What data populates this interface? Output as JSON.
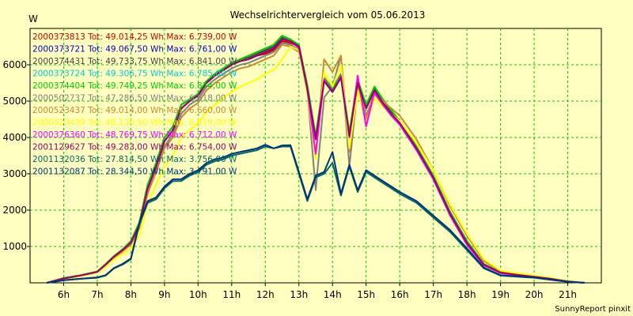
{
  "chart_data": {
    "type": "line",
    "title": "Wechselrichtervergleich vom 05.06.2013",
    "ylabel": "W",
    "xlabel": "",
    "footer": "SunnyReport pinxit",
    "grid": true,
    "ylim": [
      0,
      7000
    ],
    "xlim": [
      5,
      22
    ],
    "x_ticks": [
      6,
      7,
      8,
      9,
      10,
      11,
      12,
      13,
      14,
      15,
      16,
      17,
      18,
      19,
      20,
      21
    ],
    "x_tick_labels": [
      "6h",
      "7h",
      "8h",
      "9h",
      "10h",
      "11h",
      "12h",
      "13h",
      "14h",
      "15h",
      "16h",
      "17h",
      "18h",
      "19h",
      "20h",
      "21h"
    ],
    "y_ticks": [
      1000,
      2000,
      3000,
      4000,
      5000,
      6000
    ],
    "y_tick_labels": [
      "1000",
      "2000",
      "3000",
      "4000",
      "5000",
      "6000"
    ],
    "legend_position": "top-left",
    "x": [
      5.5,
      6.0,
      6.5,
      7.0,
      7.25,
      7.5,
      7.75,
      8.0,
      8.25,
      8.5,
      8.75,
      9.0,
      9.25,
      9.5,
      9.75,
      10.0,
      10.25,
      10.5,
      10.75,
      11.0,
      11.25,
      11.5,
      11.75,
      12.0,
      12.25,
      12.5,
      12.75,
      13.0,
      13.25,
      13.5,
      13.75,
      14.0,
      14.25,
      14.5,
      14.75,
      15.0,
      15.25,
      15.5,
      15.75,
      16.0,
      16.5,
      17.0,
      17.5,
      18.0,
      18.5,
      19.0,
      19.5,
      20.0,
      20.5,
      21.0,
      21.5
    ],
    "series": [
      {
        "name": "2000373813",
        "legend": "2000373813 Tot: 49.014,25 Wh Max: 6.739,00 W",
        "color": "#cc0000",
        "values": [
          0,
          120,
          200,
          300,
          500,
          720,
          900,
          1100,
          1600,
          2600,
          3200,
          3900,
          4200,
          4800,
          5000,
          5150,
          5500,
          5700,
          5850,
          6000,
          6100,
          6150,
          6250,
          6300,
          6400,
          6650,
          6600,
          6500,
          5400,
          4000,
          5600,
          5300,
          5700,
          4100,
          5500,
          4800,
          5300,
          4950,
          4650,
          4400,
          3700,
          2900,
          1900,
          1100,
          500,
          280,
          220,
          170,
          110,
          40,
          0
        ]
      },
      {
        "name": "2000373721",
        "legend": "2000373721 Tot: 49.067,50 Wh Max: 6.761,00 W",
        "color": "#0000cc",
        "values": [
          0,
          120,
          200,
          300,
          500,
          720,
          900,
          1100,
          1600,
          2600,
          3200,
          3900,
          4200,
          4800,
          5000,
          5150,
          5500,
          5700,
          5850,
          6000,
          6100,
          6150,
          6250,
          6350,
          6450,
          6700,
          6650,
          6500,
          5350,
          3950,
          5550,
          5250,
          5650,
          4050,
          5500,
          4800,
          5300,
          4950,
          4650,
          4400,
          3700,
          2900,
          1900,
          1100,
          500,
          280,
          220,
          170,
          110,
          40,
          0
        ]
      },
      {
        "name": "2000374431",
        "legend": "2000374431 Tot: 49.733,75 Wh Max: 6.841,00 W",
        "color": "#444444",
        "values": [
          0,
          130,
          210,
          310,
          520,
          740,
          920,
          1150,
          1650,
          2700,
          3300,
          4000,
          4300,
          4900,
          5050,
          5200,
          5550,
          5750,
          5900,
          6050,
          6150,
          6200,
          6300,
          6400,
          6500,
          6750,
          6650,
          6550,
          5400,
          4000,
          5650,
          5300,
          5700,
          4100,
          5550,
          4850,
          5350,
          5000,
          4700,
          4450,
          3750,
          2950,
          1950,
          1150,
          520,
          290,
          230,
          180,
          110,
          40,
          0
        ]
      },
      {
        "name": "2000373724",
        "legend": "2000373724 Tot: 49.306,75 Wh Max: 6.785,00 W",
        "color": "#00cccc",
        "values": [
          0,
          120,
          200,
          300,
          500,
          720,
          900,
          1100,
          1600,
          2600,
          3200,
          3900,
          4200,
          4800,
          5000,
          5150,
          5500,
          5700,
          5850,
          6000,
          6100,
          6150,
          6250,
          6350,
          6450,
          6700,
          6650,
          6500,
          5350,
          3950,
          5550,
          5250,
          5650,
          4050,
          5500,
          4800,
          5300,
          4950,
          4650,
          4400,
          3700,
          2900,
          1900,
          1100,
          500,
          280,
          220,
          170,
          110,
          40,
          0
        ]
      },
      {
        "name": "2000374404",
        "legend": "2000374404 Tot: 49.749,25 Wh Max: 6.834,00 W",
        "color": "#00cc00",
        "values": [
          0,
          130,
          210,
          310,
          520,
          740,
          920,
          1150,
          1650,
          2700,
          3300,
          4000,
          4300,
          4900,
          5050,
          5200,
          5550,
          5750,
          5900,
          6050,
          6150,
          6250,
          6350,
          6450,
          6550,
          6800,
          6700,
          6550,
          5450,
          4050,
          5650,
          5350,
          5750,
          4150,
          5600,
          4900,
          5400,
          5050,
          4750,
          4450,
          3750,
          2950,
          1950,
          1150,
          520,
          290,
          230,
          180,
          110,
          40,
          0
        ]
      },
      {
        "name": "2000502737",
        "legend": "2000502737 Tot: 47.286,50 Wh Max: 6.618,00 W",
        "color": "#808080",
        "values": [
          0,
          110,
          190,
          290,
          480,
          700,
          880,
          1080,
          1550,
          2500,
          3100,
          3750,
          4100,
          4650,
          4900,
          5050,
          5400,
          5600,
          5750,
          5900,
          6000,
          6050,
          6150,
          6250,
          6350,
          6600,
          6550,
          6400,
          5300,
          2550,
          5100,
          5400,
          6250,
          3200,
          5400,
          4600,
          5200,
          4900,
          4600,
          4350,
          3650,
          2850,
          1850,
          1050,
          480,
          270,
          210,
          160,
          100,
          40,
          0
        ]
      },
      {
        "name": "2000523437",
        "legend": "2000523437 Tot: 49.014,00 Wh Max: 6.660,00 W",
        "color": "#cc8833",
        "values": [
          0,
          110,
          190,
          290,
          470,
          690,
          860,
          1050,
          1500,
          2450,
          3050,
          3700,
          4000,
          4550,
          4800,
          4950,
          5300,
          5500,
          5650,
          5800,
          5900,
          5950,
          6050,
          6150,
          6250,
          6550,
          6500,
          6350,
          5300,
          3500,
          6150,
          5800,
          6250,
          3600,
          5400,
          4500,
          5250,
          5000,
          4800,
          4600,
          3950,
          3100,
          2100,
          1300,
          600,
          320,
          250,
          190,
          120,
          50,
          0
        ]
      },
      {
        "name": "2000523439",
        "legend": "2000523439 Tot: 48.120,50 Wh Max: 6.519,00 W",
        "color": "#ffff00",
        "values": [
          0,
          100,
          180,
          280,
          450,
          650,
          800,
          950,
          1300,
          2200,
          2700,
          3200,
          3500,
          4000,
          4200,
          4400,
          4700,
          4900,
          5100,
          5250,
          5400,
          5500,
          5600,
          5750,
          5850,
          6150,
          6500,
          6400,
          5200,
          3400,
          5800,
          5400,
          6000,
          3700,
          5300,
          4400,
          5100,
          4850,
          4650,
          4450,
          3850,
          3100,
          2150,
          1350,
          650,
          340,
          260,
          200,
          130,
          50,
          0
        ]
      },
      {
        "name": "2000376360",
        "legend": "2000376360 Tot: 48.769,75 Wh Max: 6.712,00 W",
        "color": "#ff00ff",
        "values": [
          0,
          120,
          200,
          300,
          500,
          720,
          900,
          1100,
          1600,
          2600,
          3200,
          3900,
          4200,
          4800,
          5000,
          5150,
          5500,
          5700,
          5850,
          6000,
          6100,
          6150,
          6250,
          6350,
          6450,
          6700,
          6650,
          6450,
          5300,
          3550,
          5600,
          5250,
          5700,
          4000,
          5700,
          4300,
          5250,
          4900,
          4600,
          4350,
          3650,
          2850,
          1850,
          1050,
          480,
          270,
          210,
          160,
          100,
          40,
          0
        ]
      },
      {
        "name": "2001129627",
        "legend": "2001129627 Tot: 49.283,00 Wh Max: 6.754,00 W",
        "color": "#990066",
        "values": [
          0,
          120,
          200,
          300,
          500,
          720,
          900,
          1100,
          1600,
          2600,
          3200,
          3900,
          4200,
          4800,
          5000,
          5150,
          5500,
          5700,
          5850,
          6000,
          6100,
          6150,
          6250,
          6350,
          6450,
          6700,
          6650,
          6500,
          5350,
          3950,
          5550,
          5250,
          5650,
          4050,
          5500,
          4800,
          5300,
          4950,
          4650,
          4400,
          3700,
          2900,
          1900,
          1100,
          500,
          280,
          220,
          170,
          110,
          40,
          0
        ]
      },
      {
        "name": "2001132036",
        "legend": "2001132036 Tot: 27.814,50 Wh Max: 3.756,00 W",
        "color": "#006666",
        "values": [
          0,
          70,
          110,
          140,
          200,
          400,
          500,
          650,
          1600,
          2200,
          2300,
          2600,
          2800,
          2800,
          2950,
          3050,
          3250,
          3350,
          3400,
          3500,
          3550,
          3600,
          3650,
          3750,
          3700,
          3750,
          3750,
          3000,
          2250,
          2900,
          3000,
          3300,
          2400,
          3200,
          2500,
          3050,
          2900,
          2750,
          2600,
          2450,
          2200,
          1800,
          1400,
          900,
          400,
          200,
          170,
          140,
          80,
          30,
          0
        ]
      },
      {
        "name": "2001132087",
        "legend": "2001132087 Tot: 28.344,50 Wh Max: 3.791,00 W",
        "color": "#003377",
        "values": [
          0,
          70,
          110,
          150,
          210,
          410,
          520,
          670,
          1650,
          2250,
          2350,
          2650,
          2850,
          2850,
          3000,
          3100,
          3300,
          3400,
          3450,
          3550,
          3600,
          3650,
          3700,
          3800,
          3700,
          3780,
          3790,
          3050,
          2300,
          2950,
          3050,
          3600,
          2450,
          3250,
          2550,
          3100,
          2950,
          2800,
          2650,
          2500,
          2250,
          1850,
          1450,
          950,
          420,
          210,
          180,
          150,
          90,
          30,
          0
        ]
      }
    ]
  }
}
